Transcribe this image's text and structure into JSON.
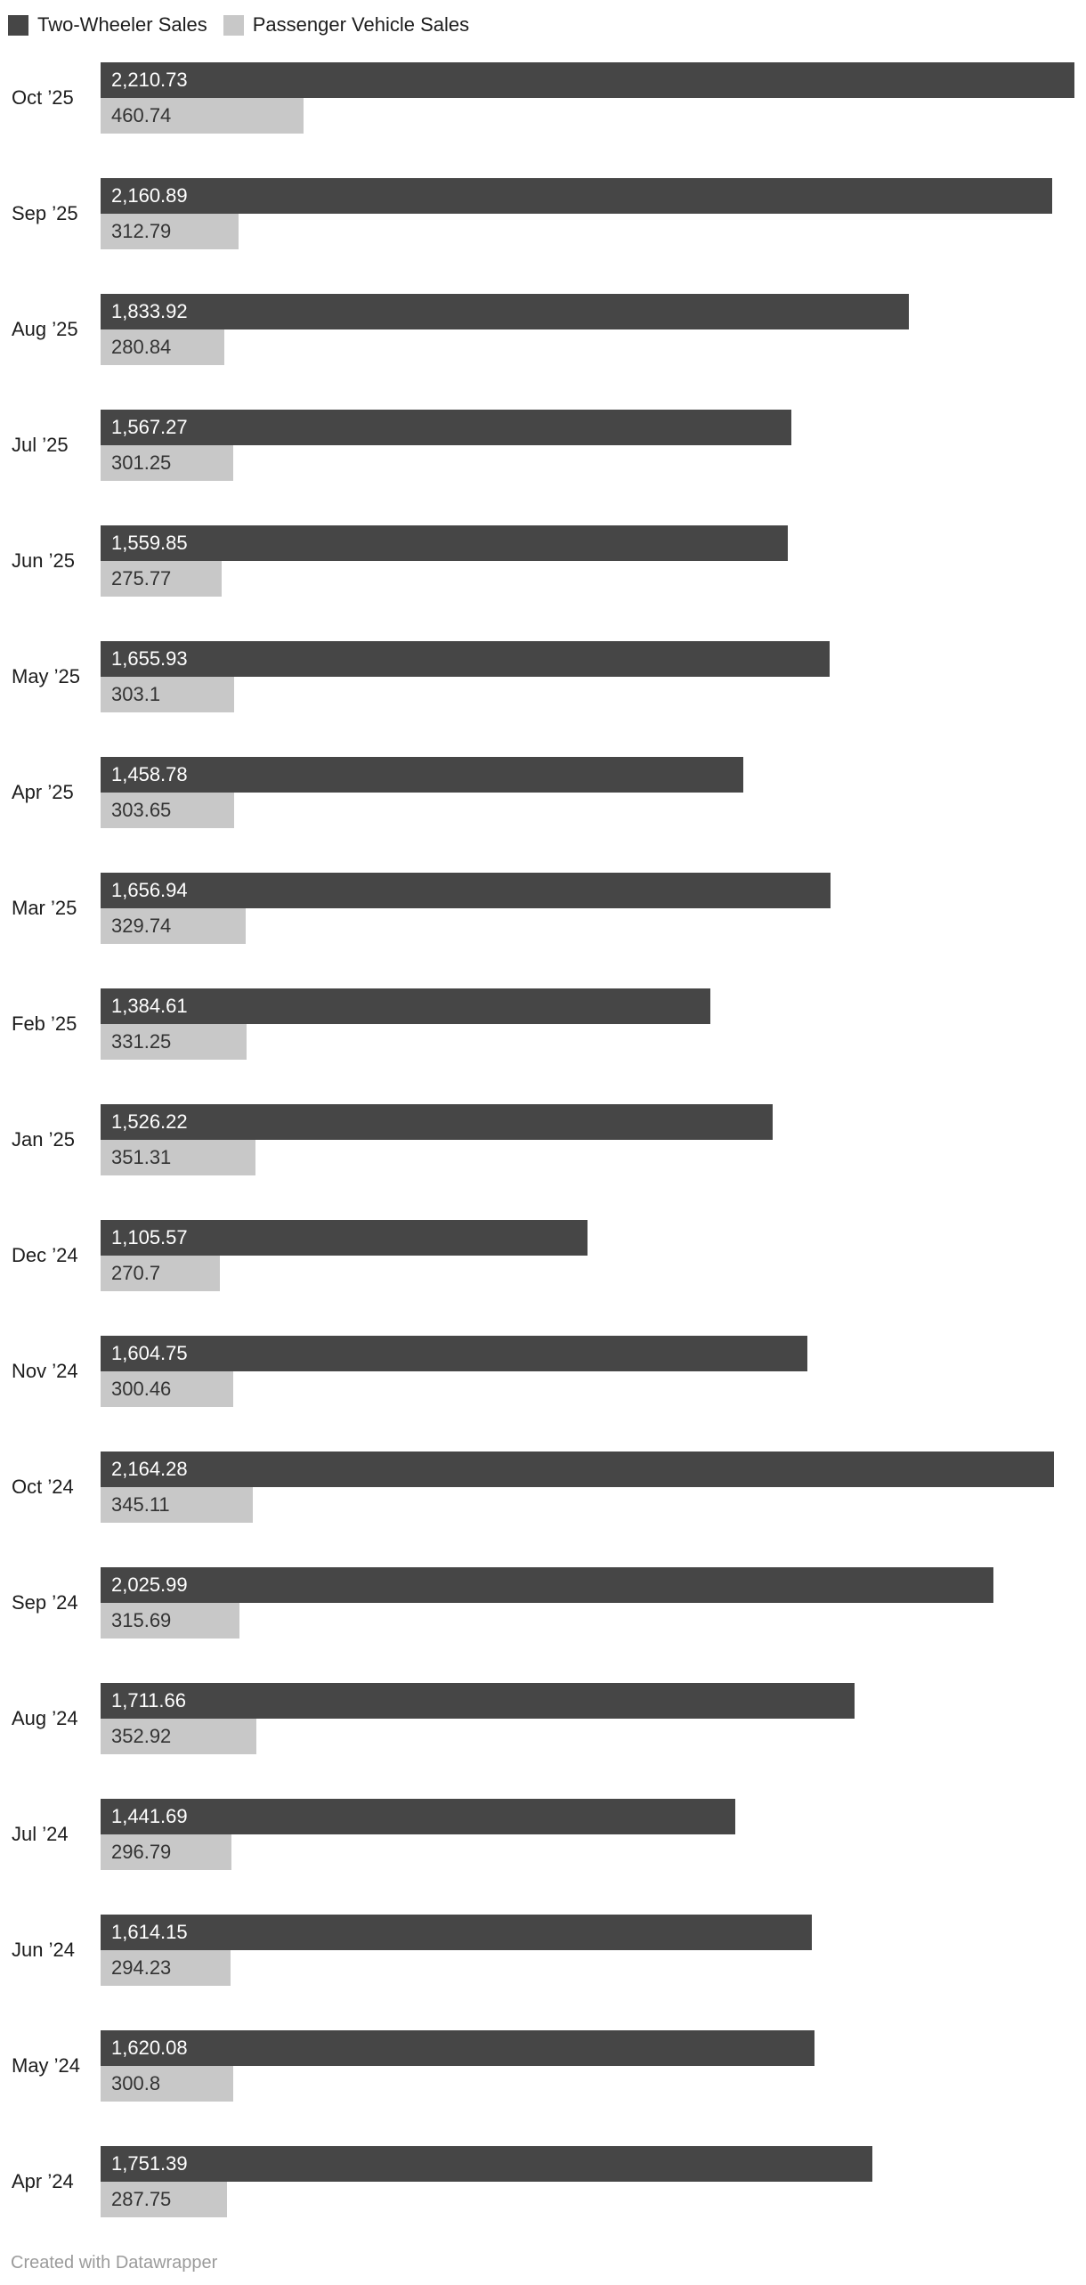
{
  "footer": {
    "credit": "Created with Datawrapper"
  },
  "chart_data": {
    "type": "bar",
    "orientation": "horizontal",
    "grouped": true,
    "title": "",
    "xlabel": "",
    "ylabel": "",
    "xlim": [
      0,
      2210.73
    ],
    "grid": false,
    "legend_position": "top",
    "value_labels": "inside-start",
    "categories": [
      "Oct ’25",
      "Sep ’25",
      "Aug ’25",
      "Jul ’25",
      "Jun ’25",
      "May ’25",
      "Apr ’25",
      "Mar ’25",
      "Feb ’25",
      "Jan ’25",
      "Dec ’24",
      "Nov ’24",
      "Oct ’24",
      "Sep ’24",
      "Aug ’24",
      "Jul ’24",
      "Jun ’24",
      "May ’24",
      "Apr ’24"
    ],
    "series": [
      {
        "name": "Two-Wheeler Sales",
        "color": "#464646",
        "label_color": "#ffffff",
        "values": [
          2210.73,
          2160.89,
          1833.92,
          1567.27,
          1559.85,
          1655.93,
          1458.78,
          1656.94,
          1384.61,
          1526.22,
          1105.57,
          1604.75,
          2164.28,
          2025.99,
          1711.66,
          1441.69,
          1614.15,
          1620.08,
          1751.39
        ],
        "labels": [
          "2,210.73",
          "2,160.89",
          "1,833.92",
          "1,567.27",
          "1,559.85",
          "1,655.93",
          "1,458.78",
          "1,656.94",
          "1,384.61",
          "1,526.22",
          "1,105.57",
          "1,604.75",
          "2,164.28",
          "2,025.99",
          "1,711.66",
          "1,441.69",
          "1,614.15",
          "1,620.08",
          "1,751.39"
        ]
      },
      {
        "name": "Passenger Vehicle Sales",
        "color": "#c8c8c8",
        "label_color": "#333333",
        "values": [
          460.74,
          312.79,
          280.84,
          301.25,
          275.77,
          303.1,
          303.65,
          329.74,
          331.25,
          351.31,
          270.7,
          300.46,
          345.11,
          315.69,
          352.92,
          296.79,
          294.23,
          300.8,
          287.75
        ],
        "labels": [
          "460.74",
          "312.79",
          "280.84",
          "301.25",
          "275.77",
          "303.1",
          "303.65",
          "329.74",
          "331.25",
          "351.31",
          "270.7",
          "300.46",
          "345.11",
          "315.69",
          "352.92",
          "296.79",
          "294.23",
          "300.8",
          "287.75"
        ]
      }
    ]
  }
}
